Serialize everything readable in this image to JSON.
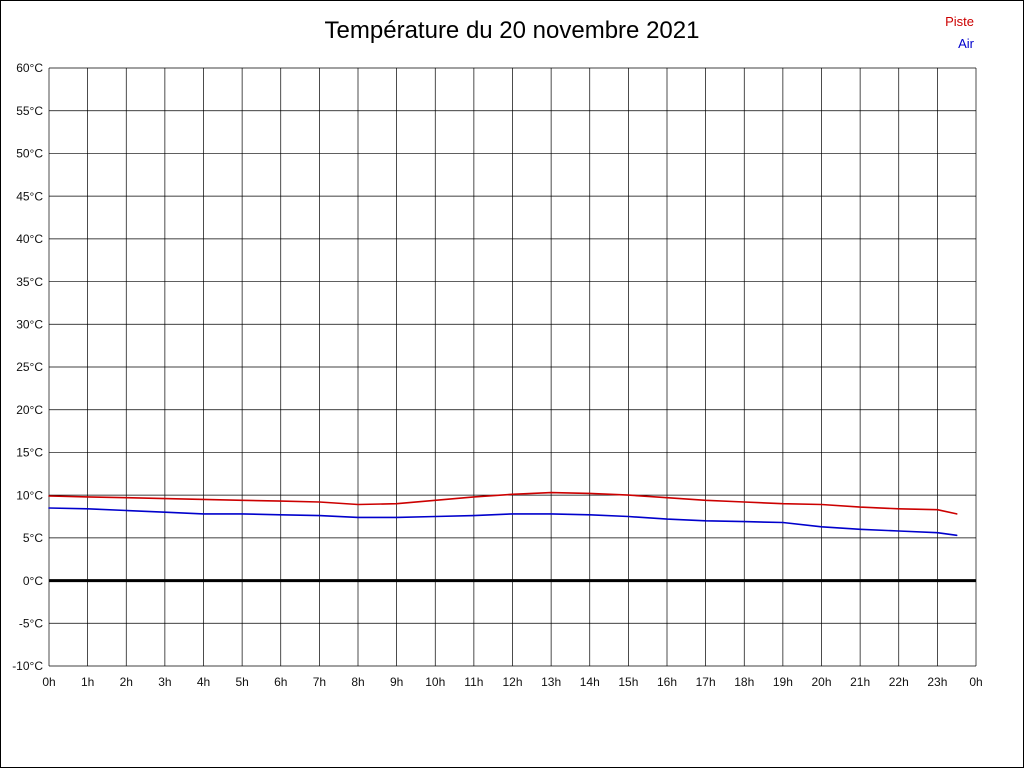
{
  "title": "Température du 20 novembre 2021",
  "legend": {
    "piste": {
      "label": "Piste",
      "color": "#cc0000"
    },
    "air": {
      "label": "Air",
      "color": "#0000cc"
    }
  },
  "chart_data": {
    "type": "line",
    "title": "Température du 20 novembre 2021",
    "xlabel": "",
    "ylabel": "",
    "xlim": [
      0,
      24
    ],
    "ylim": [
      -10,
      60
    ],
    "grid": true,
    "legend_position": "top-right",
    "zero_line": {
      "value": 0,
      "color": "#000000",
      "width": 3
    },
    "x": [
      0,
      1,
      2,
      3,
      4,
      5,
      6,
      7,
      8,
      9,
      10,
      11,
      12,
      13,
      14,
      15,
      16,
      17,
      18,
      19,
      20,
      21,
      22,
      23,
      23.5
    ],
    "x_ticks": [
      0,
      1,
      2,
      3,
      4,
      5,
      6,
      7,
      8,
      9,
      10,
      11,
      12,
      13,
      14,
      15,
      16,
      17,
      18,
      19,
      20,
      21,
      22,
      23,
      24
    ],
    "x_tick_labels": [
      "0h",
      "1h",
      "2h",
      "3h",
      "4h",
      "5h",
      "6h",
      "7h",
      "8h",
      "9h",
      "10h",
      "11h",
      "12h",
      "13h",
      "14h",
      "15h",
      "16h",
      "17h",
      "18h",
      "19h",
      "20h",
      "21h",
      "22h",
      "23h",
      "0h"
    ],
    "y_ticks": [
      60,
      55,
      50,
      45,
      40,
      35,
      30,
      25,
      20,
      15,
      10,
      5,
      0,
      -5,
      -10
    ],
    "y_tick_labels": [
      "60°C",
      "55°C",
      "50°C",
      "45°C",
      "40°C",
      "35°C",
      "30°C",
      "25°C",
      "20°C",
      "15°C",
      "10°C",
      "5°C",
      "0°C",
      "-5°C",
      "-10°C"
    ],
    "series": [
      {
        "name": "Piste",
        "color": "#cc0000",
        "values": [
          9.9,
          9.8,
          9.7,
          9.6,
          9.5,
          9.4,
          9.3,
          9.2,
          8.9,
          9.0,
          9.4,
          9.8,
          10.1,
          10.3,
          10.2,
          10.0,
          9.7,
          9.4,
          9.2,
          9.0,
          8.9,
          8.6,
          8.4,
          8.3,
          7.8
        ]
      },
      {
        "name": "Air",
        "color": "#0000cc",
        "values": [
          8.5,
          8.4,
          8.2,
          8.0,
          7.8,
          7.8,
          7.7,
          7.6,
          7.4,
          7.4,
          7.5,
          7.6,
          7.8,
          7.8,
          7.7,
          7.5,
          7.2,
          7.0,
          6.9,
          6.8,
          6.3,
          6.0,
          5.8,
          5.6,
          5.3
        ]
      }
    ]
  }
}
